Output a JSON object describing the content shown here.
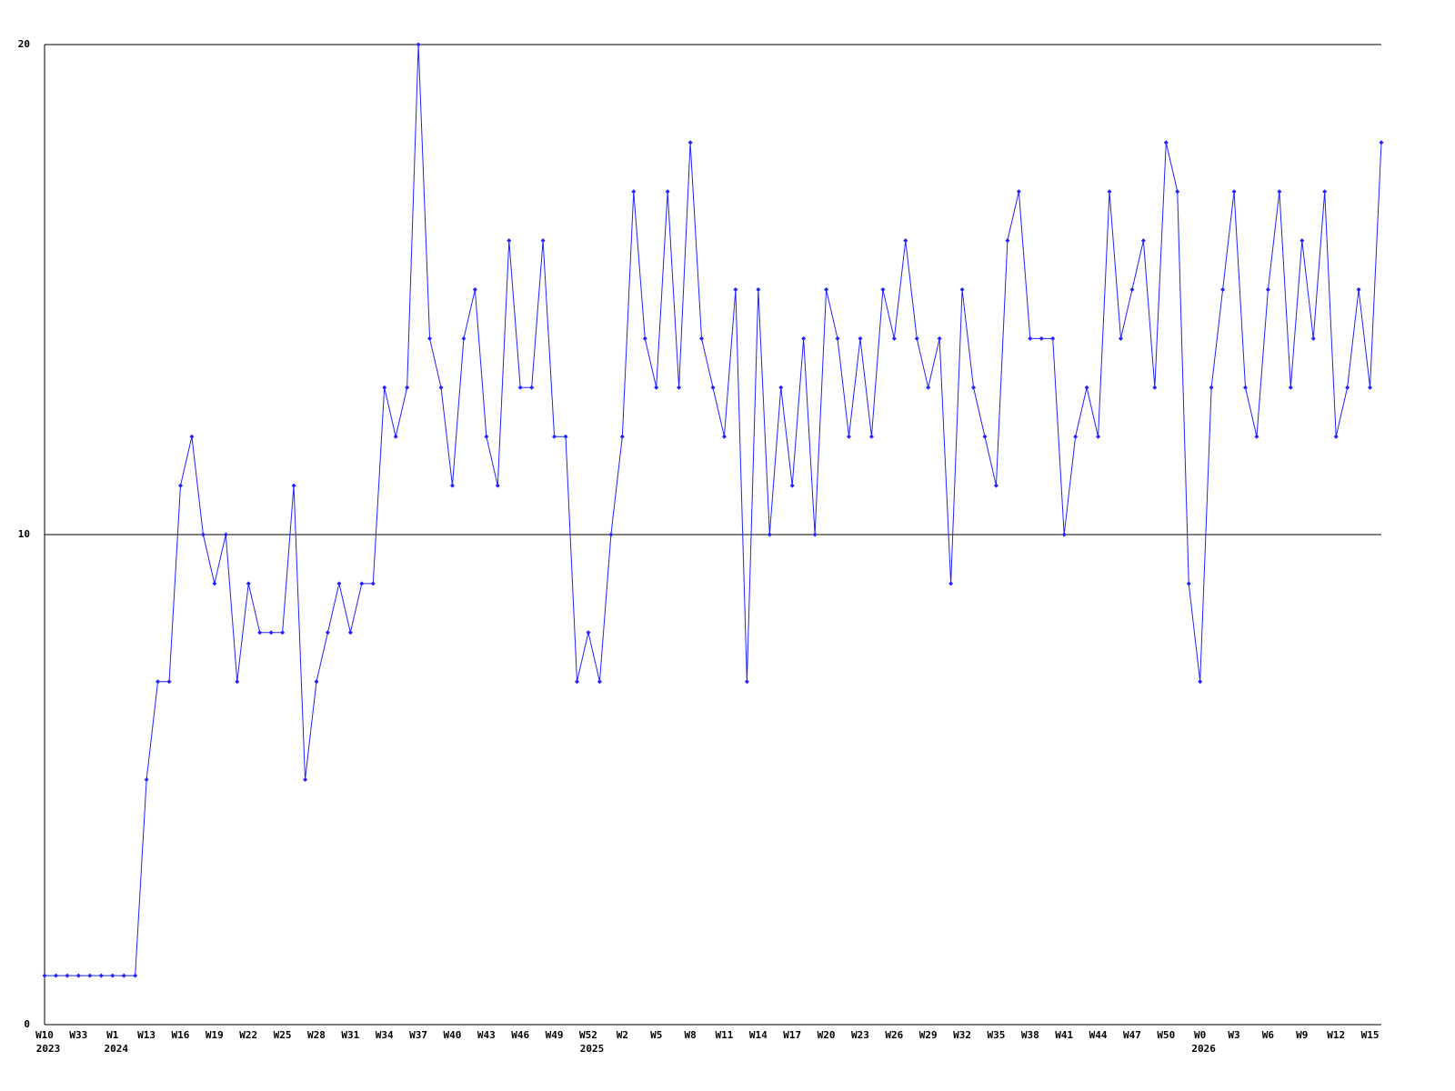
{
  "chart_data": {
    "type": "line",
    "categories": [
      "W10",
      null,
      null,
      "W33",
      null,
      null,
      "W1",
      null,
      null,
      "W13",
      null,
      null,
      "W16",
      null,
      null,
      "W19",
      null,
      null,
      "W22",
      null,
      null,
      "W25",
      null,
      null,
      "W28",
      null,
      null,
      "W31",
      null,
      null,
      "W34",
      null,
      null,
      "W37",
      null,
      null,
      "W40",
      null,
      null,
      "W43",
      null,
      null,
      "W46",
      null,
      null,
      "W49",
      null,
      null,
      "W52",
      null,
      null,
      "W2",
      null,
      null,
      "W5",
      null,
      null,
      "W8",
      null,
      null,
      "W11",
      null,
      null,
      "W14",
      null,
      null,
      "W17",
      null,
      null,
      "W20",
      null,
      null,
      "W23",
      null,
      null,
      "W26",
      null,
      null,
      "W29",
      null,
      null,
      "W32",
      null,
      null,
      "W35",
      null,
      null,
      "W38",
      null,
      null,
      "W41",
      null,
      null,
      "W44",
      null,
      null,
      "W47",
      null,
      null,
      "W50",
      null,
      null,
      "W0",
      null,
      null,
      "W3",
      null,
      null,
      "W6",
      null,
      null,
      "W9",
      null,
      null,
      "W12",
      null,
      null,
      "W15",
      null
    ],
    "year_labels": [
      "2023",
      null,
      null,
      null,
      null,
      null,
      "2024",
      null,
      null,
      null,
      null,
      null,
      null,
      null,
      null,
      null,
      null,
      null,
      null,
      null,
      null,
      null,
      null,
      null,
      null,
      null,
      null,
      null,
      null,
      null,
      null,
      null,
      null,
      null,
      null,
      null,
      null,
      null,
      null,
      null,
      null,
      null,
      null,
      null,
      null,
      null,
      null,
      null,
      "2025",
      null,
      null,
      null,
      null,
      null,
      null,
      null,
      null,
      null,
      null,
      null,
      null,
      null,
      null,
      null,
      null,
      null,
      null,
      null,
      null,
      null,
      null,
      null,
      null,
      null,
      null,
      null,
      null,
      null,
      null,
      null,
      null,
      null,
      null,
      null,
      null,
      null,
      null,
      null,
      null,
      null,
      null,
      null,
      null,
      null,
      null,
      null,
      null,
      null,
      null,
      null,
      null,
      null,
      "2026",
      null,
      null,
      null,
      null,
      null,
      null,
      null,
      null,
      null,
      null,
      null,
      null,
      null,
      null,
      null,
      null
    ],
    "series": [
      {
        "color": "#2222ff",
        "values": [
          1,
          1,
          1,
          1,
          1,
          1,
          1,
          1,
          1,
          5,
          7,
          7,
          11,
          12,
          10,
          9,
          10,
          7,
          9,
          8,
          8,
          8,
          11,
          5,
          7,
          8,
          9,
          8,
          9,
          9,
          13,
          12,
          13,
          20,
          14,
          13,
          11,
          14,
          15,
          12,
          11,
          16,
          13,
          13,
          16,
          12,
          12,
          7,
          8,
          7,
          10,
          12,
          17,
          14,
          13,
          17,
          13,
          18,
          14,
          13,
          12,
          15,
          7,
          15,
          10,
          13,
          11,
          14,
          10,
          15,
          14,
          12,
          14,
          12,
          15,
          14,
          16,
          14,
          13,
          14,
          9,
          15,
          13,
          12,
          11,
          16,
          17,
          14,
          14,
          14,
          10,
          12,
          13,
          12,
          17,
          14,
          15,
          16,
          13,
          18,
          17,
          9,
          7,
          13,
          15,
          17,
          13,
          12,
          15,
          17,
          13,
          16,
          14,
          17,
          12,
          13,
          15,
          13,
          18
        ]
      }
    ],
    "ylim": [
      0,
      20
    ],
    "yticks": [
      0,
      10,
      20
    ],
    "grid": true
  }
}
